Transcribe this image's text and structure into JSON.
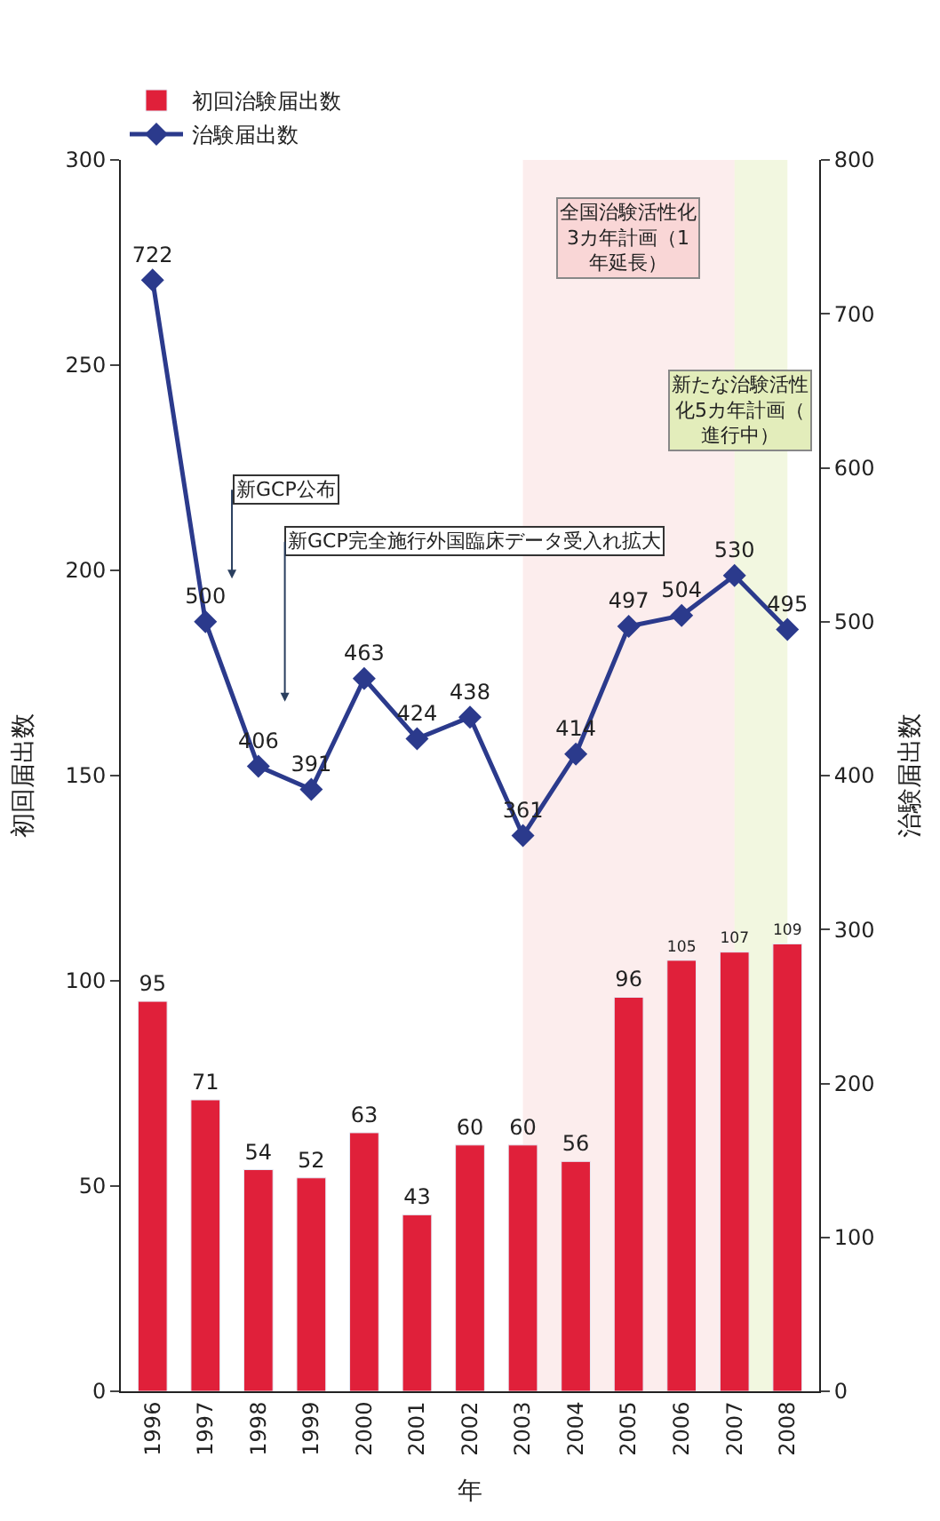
{
  "chart_data": {
    "type": "bar",
    "xlabel": "年",
    "ylabel": "初回届出数",
    "y2label": "治験届出数",
    "categories": [
      "1996",
      "1997",
      "1998",
      "1999",
      "2000",
      "2001",
      "2002",
      "2003",
      "2004",
      "2005",
      "2006",
      "2007",
      "2008"
    ],
    "series": [
      {
        "name": "初回治験届出数",
        "color": "#e0203a",
        "values": [
          95,
          71,
          54,
          52,
          63,
          43,
          60,
          60,
          56,
          96,
          105,
          107,
          109
        ]
      },
      {
        "name": "治験届出数",
        "type": "line",
        "axis": "y2",
        "color": "#2b3a8c",
        "marker": "diamond",
        "line_style": "solid",
        "values": [
          722,
          500,
          406,
          391,
          463,
          424,
          438,
          361,
          414,
          497,
          504,
          530,
          495
        ]
      }
    ],
    "ylim": [
      0,
      300
    ],
    "yticks": [
      0,
      50,
      100,
      150,
      200,
      250,
      300
    ],
    "y2lim": [
      0,
      800
    ],
    "y2ticks": [
      0,
      100,
      200,
      300,
      400,
      500,
      600,
      700,
      800
    ],
    "data_labels": true,
    "legend": "top left",
    "grid": false,
    "bands": [
      {
        "axis": "x",
        "from": "2003",
        "to": "2007",
        "label": "全国治験活性化3カ年計画（1年延長）",
        "color": "#f9d6d6"
      },
      {
        "axis": "x",
        "from": "2007",
        "to": "2008",
        "label": "新たな治験活性化5カ年計画（進行中）",
        "color": "#e3edbb"
      }
    ],
    "annotations": [
      "新GCP公布",
      "新GCP完全施行外国臨床データ受入れ拡大"
    ]
  }
}
